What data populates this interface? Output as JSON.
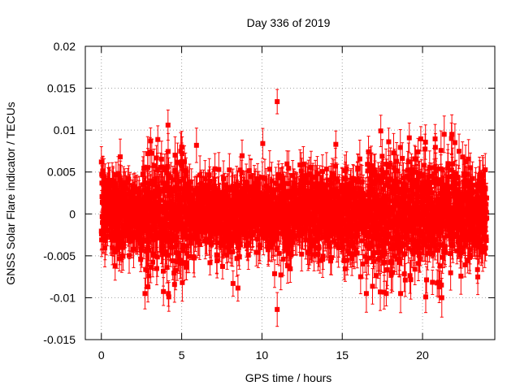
{
  "chart_data": {
    "type": "scatter",
    "title": "Day 336 of 2019",
    "xlabel": "GPS time / hours",
    "ylabel": "GNSS Solar Flare indicator / TECUs",
    "xlim": [
      -1,
      24.5
    ],
    "ylim": [
      -0.015,
      0.02
    ],
    "x_ticks": [
      0,
      5,
      10,
      15,
      20
    ],
    "x_tick_labels": [
      "0",
      "5",
      "10",
      "15",
      "20"
    ],
    "y_ticks": [
      -0.015,
      -0.01,
      -0.005,
      0,
      0.005,
      0.01,
      0.015,
      0.02
    ],
    "y_tick_labels": [
      "-0.015",
      "-0.01",
      "-0.005",
      "0",
      "0.005",
      "0.01",
      "0.015",
      "0.02"
    ],
    "grid": true,
    "series": [
      {
        "name": "solar flare indicator",
        "color": "#ff0000",
        "marker": "square",
        "error_bars": true,
        "x_range": [
          0,
          24
        ],
        "sample_interval_hours": 0.00833,
        "typical_error": 0.0018,
        "notable_points": [
          {
            "x": 0.0,
            "y": 0.0062
          },
          {
            "x": 2.9,
            "y": -0.0087
          },
          {
            "x": 4.15,
            "y": 0.0106
          },
          {
            "x": 4.2,
            "y": -0.0099
          },
          {
            "x": 5.0,
            "y": 0.008
          },
          {
            "x": 8.2,
            "y": -0.0083
          },
          {
            "x": 10.05,
            "y": 0.0084
          },
          {
            "x": 10.95,
            "y": 0.0134
          },
          {
            "x": 10.95,
            "y": -0.0114
          },
          {
            "x": 14.6,
            "y": 0.0083
          },
          {
            "x": 17.4,
            "y": 0.0099
          },
          {
            "x": 20.2,
            "y": -0.0099
          },
          {
            "x": 21.2,
            "y": -0.01
          },
          {
            "x": 21.8,
            "y": 0.009
          }
        ]
      }
    ]
  }
}
